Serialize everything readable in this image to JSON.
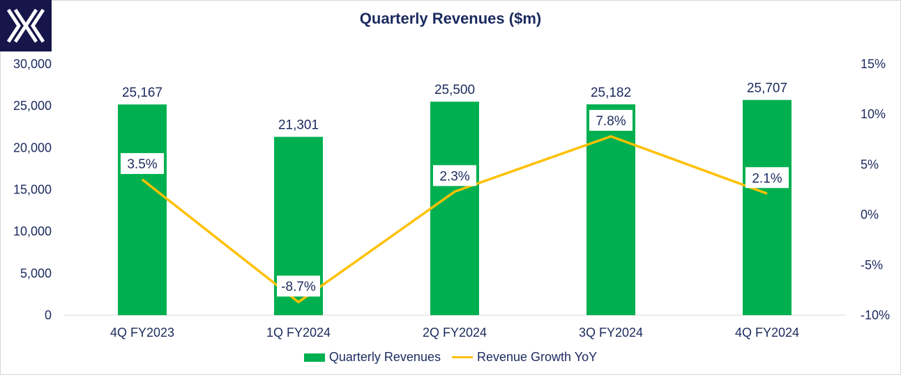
{
  "brand": {
    "logo_icon": "x-logo-icon",
    "logo_bg": "#16164a"
  },
  "colors": {
    "bar": "#00b050",
    "line": "#ffc000",
    "text": "#1b2a5e"
  },
  "chart_data": {
    "type": "bar",
    "title": "Quarterly Revenues ($m)",
    "categories": [
      "4Q FY2023",
      "1Q FY2024",
      "2Q FY2024",
      "3Q FY2024",
      "4Q FY2024"
    ],
    "series": [
      {
        "name": "Quarterly Revenues",
        "type": "bar",
        "axis": "left",
        "values": [
          25167,
          21301,
          25500,
          25182,
          25707
        ],
        "labels": [
          "25,167",
          "21,301",
          "25,500",
          "25,182",
          "25,707"
        ]
      },
      {
        "name": "Revenue Growth YoY",
        "type": "line",
        "axis": "right",
        "values": [
          3.5,
          -8.7,
          2.3,
          7.8,
          2.1
        ],
        "labels": [
          "3.5%",
          "-8.7%",
          "2.3%",
          "7.8%",
          "2.1%"
        ]
      }
    ],
    "y_left": {
      "min": 0,
      "max": 30000,
      "ticks": [
        0,
        5000,
        10000,
        15000,
        20000,
        25000,
        30000
      ],
      "tick_labels": [
        "0",
        "5,000",
        "10,000",
        "15,000",
        "20,000",
        "25,000",
        "30,000"
      ]
    },
    "y_right": {
      "min": -10,
      "max": 15,
      "ticks": [
        -10,
        -5,
        0,
        5,
        10,
        15
      ],
      "tick_labels": [
        "-10%",
        "-5%",
        "0%",
        "5%",
        "10%",
        "15%"
      ]
    },
    "legend_position": "bottom",
    "grid": false
  }
}
